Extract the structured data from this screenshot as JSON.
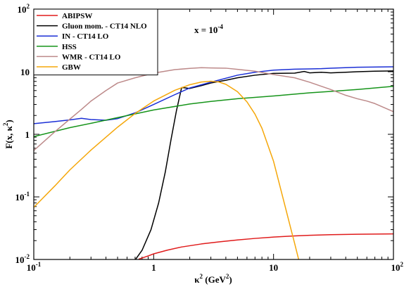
{
  "chart_data": {
    "type": "line",
    "title": "",
    "xscale": "log",
    "yscale": "log",
    "xlim": [
      0.1,
      100
    ],
    "ylim": [
      0.01,
      100
    ],
    "x_ticks": [
      {
        "value": 0.1,
        "base": "10",
        "exp": "-1"
      },
      {
        "value": 1,
        "base": "1",
        "exp": ""
      },
      {
        "value": 10,
        "base": "10",
        "exp": ""
      },
      {
        "value": 100,
        "base": "10",
        "exp": "2"
      }
    ],
    "y_ticks": [
      {
        "value": 0.01,
        "base": "10",
        "exp": "-2"
      },
      {
        "value": 0.1,
        "base": "10",
        "exp": "-1"
      },
      {
        "value": 1,
        "base": "1",
        "exp": ""
      },
      {
        "value": 10,
        "base": "10",
        "exp": ""
      },
      {
        "value": 100,
        "base": "10",
        "exp": "2"
      }
    ],
    "xlabel": {
      "main": "κ",
      "sup": "2",
      "unit": " (GeV",
      "unit_sup": "2",
      "close": ")"
    },
    "ylabel": {
      "main": "F(x, κ",
      "sup": "2",
      "close": ")"
    },
    "annotation": {
      "text": "x = 10",
      "sup": "-4"
    },
    "legend_position": "top-left",
    "series": [
      {
        "name": "ABIPSW",
        "color": "#e01b1b",
        "x": [
          0.75,
          0.9,
          1.0,
          1.3,
          1.7,
          2.5,
          3.5,
          5,
          7,
          10,
          15,
          20,
          30,
          50,
          100
        ],
        "y": [
          0.0101,
          0.0114,
          0.0123,
          0.0141,
          0.0158,
          0.0177,
          0.0191,
          0.0205,
          0.0217,
          0.0228,
          0.0238,
          0.0243,
          0.0249,
          0.0253,
          0.0256
        ]
      },
      {
        "name": "Gluon mom. - CT14 NLO",
        "color": "#000000",
        "x": [
          0.7,
          0.8,
          0.95,
          1.1,
          1.25,
          1.4,
          1.55,
          1.7,
          1.72,
          2.0,
          2.5,
          3,
          4,
          5,
          7,
          10,
          15,
          18,
          20,
          25,
          30,
          40,
          50,
          70,
          100
        ],
        "y": [
          0.0098,
          0.014,
          0.03,
          0.08,
          0.25,
          0.85,
          2.4,
          5.3,
          5.6,
          5.4,
          6.0,
          6.6,
          7.3,
          8.0,
          8.8,
          9.4,
          9.5,
          10.1,
          9.6,
          9.8,
          9.6,
          9.8,
          10.0,
          10.2,
          10.3
        ]
      },
      {
        "name": "IN - CT14 LO",
        "color": "#1b2fd6",
        "x": [
          0.1,
          0.15,
          0.2,
          0.25,
          0.3,
          0.4,
          0.5,
          0.7,
          1.0,
          1.5,
          2,
          3,
          5,
          7,
          10,
          15,
          20,
          25,
          30,
          50,
          100
        ],
        "y": [
          1.48,
          1.6,
          1.7,
          1.8,
          1.72,
          1.68,
          1.78,
          2.2,
          3.0,
          4.3,
          5.5,
          6.8,
          8.8,
          9.8,
          10.6,
          11.0,
          11.1,
          11.2,
          11.4,
          11.8,
          12.0
        ]
      },
      {
        "name": "HSS",
        "color": "#16941a",
        "x": [
          0.1,
          0.2,
          0.3,
          0.5,
          0.7,
          1,
          2,
          3,
          5,
          10,
          20,
          30,
          50,
          100
        ],
        "y": [
          0.92,
          1.28,
          1.5,
          1.85,
          2.12,
          2.45,
          3.05,
          3.35,
          3.7,
          4.1,
          4.6,
          4.85,
          5.2,
          5.85
        ]
      },
      {
        "name": "WMR - CT14 LO",
        "color": "#bd8a8a",
        "x": [
          0.1,
          0.12,
          0.15,
          0.2,
          0.25,
          0.3,
          0.4,
          0.5,
          0.7,
          1.0,
          1.5,
          2.0,
          2.5,
          3,
          4,
          5,
          7,
          10,
          15,
          20,
          30,
          40,
          50,
          60,
          70,
          100
        ],
        "y": [
          0.55,
          0.75,
          1.1,
          1.75,
          2.5,
          3.4,
          5.0,
          6.6,
          8.0,
          9.5,
          10.8,
          11.3,
          11.6,
          11.5,
          11.4,
          10.9,
          10.2,
          9.0,
          8.0,
          6.8,
          5.2,
          4.2,
          3.7,
          3.4,
          3.1,
          2.3
        ]
      },
      {
        "name": "GBW",
        "color": "#f5a70a",
        "x": [
          0.1,
          0.15,
          0.2,
          0.3,
          0.5,
          0.7,
          1.0,
          1.5,
          2.0,
          2.5,
          3.0,
          3.5,
          4,
          5,
          6,
          7,
          8,
          10,
          12,
          14,
          15,
          16.3
        ],
        "y": [
          0.068,
          0.15,
          0.27,
          0.56,
          1.3,
          2.15,
          3.4,
          5.05,
          6.2,
          6.85,
          7.05,
          6.85,
          6.3,
          4.8,
          3.3,
          2.1,
          1.25,
          0.37,
          0.095,
          0.03,
          0.018,
          0.0095
        ]
      }
    ]
  }
}
